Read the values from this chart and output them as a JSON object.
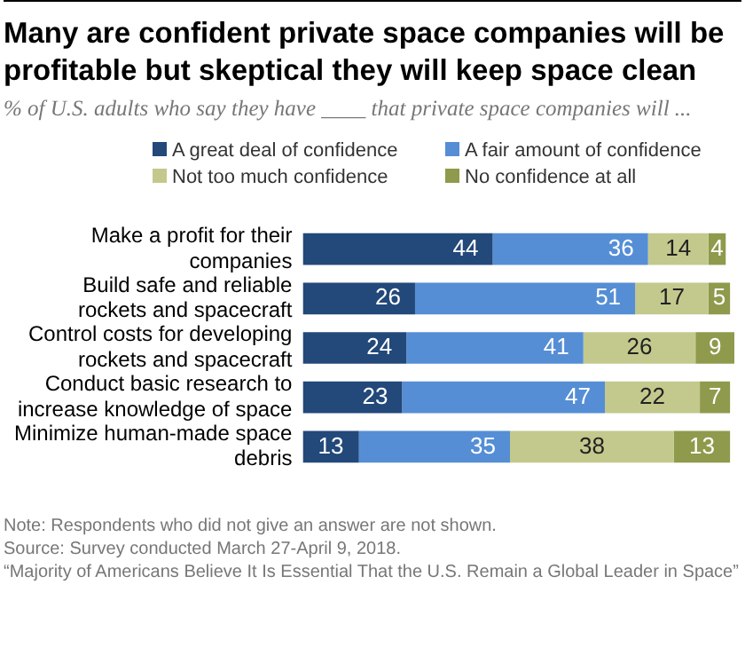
{
  "chart_data": {
    "type": "bar",
    "orientation": "horizontal",
    "stacked": true,
    "data_labels": true,
    "legend": "top",
    "grid": false,
    "title": "Many are confident private space companies will be profitable but skeptical they will keep space clean",
    "subtitle": "% of U.S. adults who say they have ____ that private space companies will ...",
    "categories": [
      "Make a profit for their companies",
      "Build safe and reliable rockets and spacecraft",
      "Control costs for developing rockets and spacecraft",
      "Conduct basic research to increase knowledge of space",
      "Minimize human-made space debris"
    ],
    "series": [
      {
        "name": "A great deal of confidence",
        "color": "#23487a",
        "values": [
          44,
          26,
          24,
          23,
          13
        ]
      },
      {
        "name": "A fair amount of confidence",
        "color": "#558ed5",
        "values": [
          36,
          51,
          41,
          47,
          35
        ]
      },
      {
        "name": "Not too much confidence",
        "color": "#c3c98d",
        "values": [
          14,
          17,
          26,
          22,
          38
        ]
      },
      {
        "name": "No confidence at all",
        "color": "#8f9a4c",
        "values": [
          4,
          5,
          9,
          7,
          13
        ]
      }
    ],
    "annotations": [
      "Note: Respondents who did not give an answer are not shown.",
      "Source: Survey conducted March 27-April 9, 2018.",
      "“Majority of Americans Believe It Is Essential That the U.S. Remain a Global Leader in Space”"
    ]
  }
}
